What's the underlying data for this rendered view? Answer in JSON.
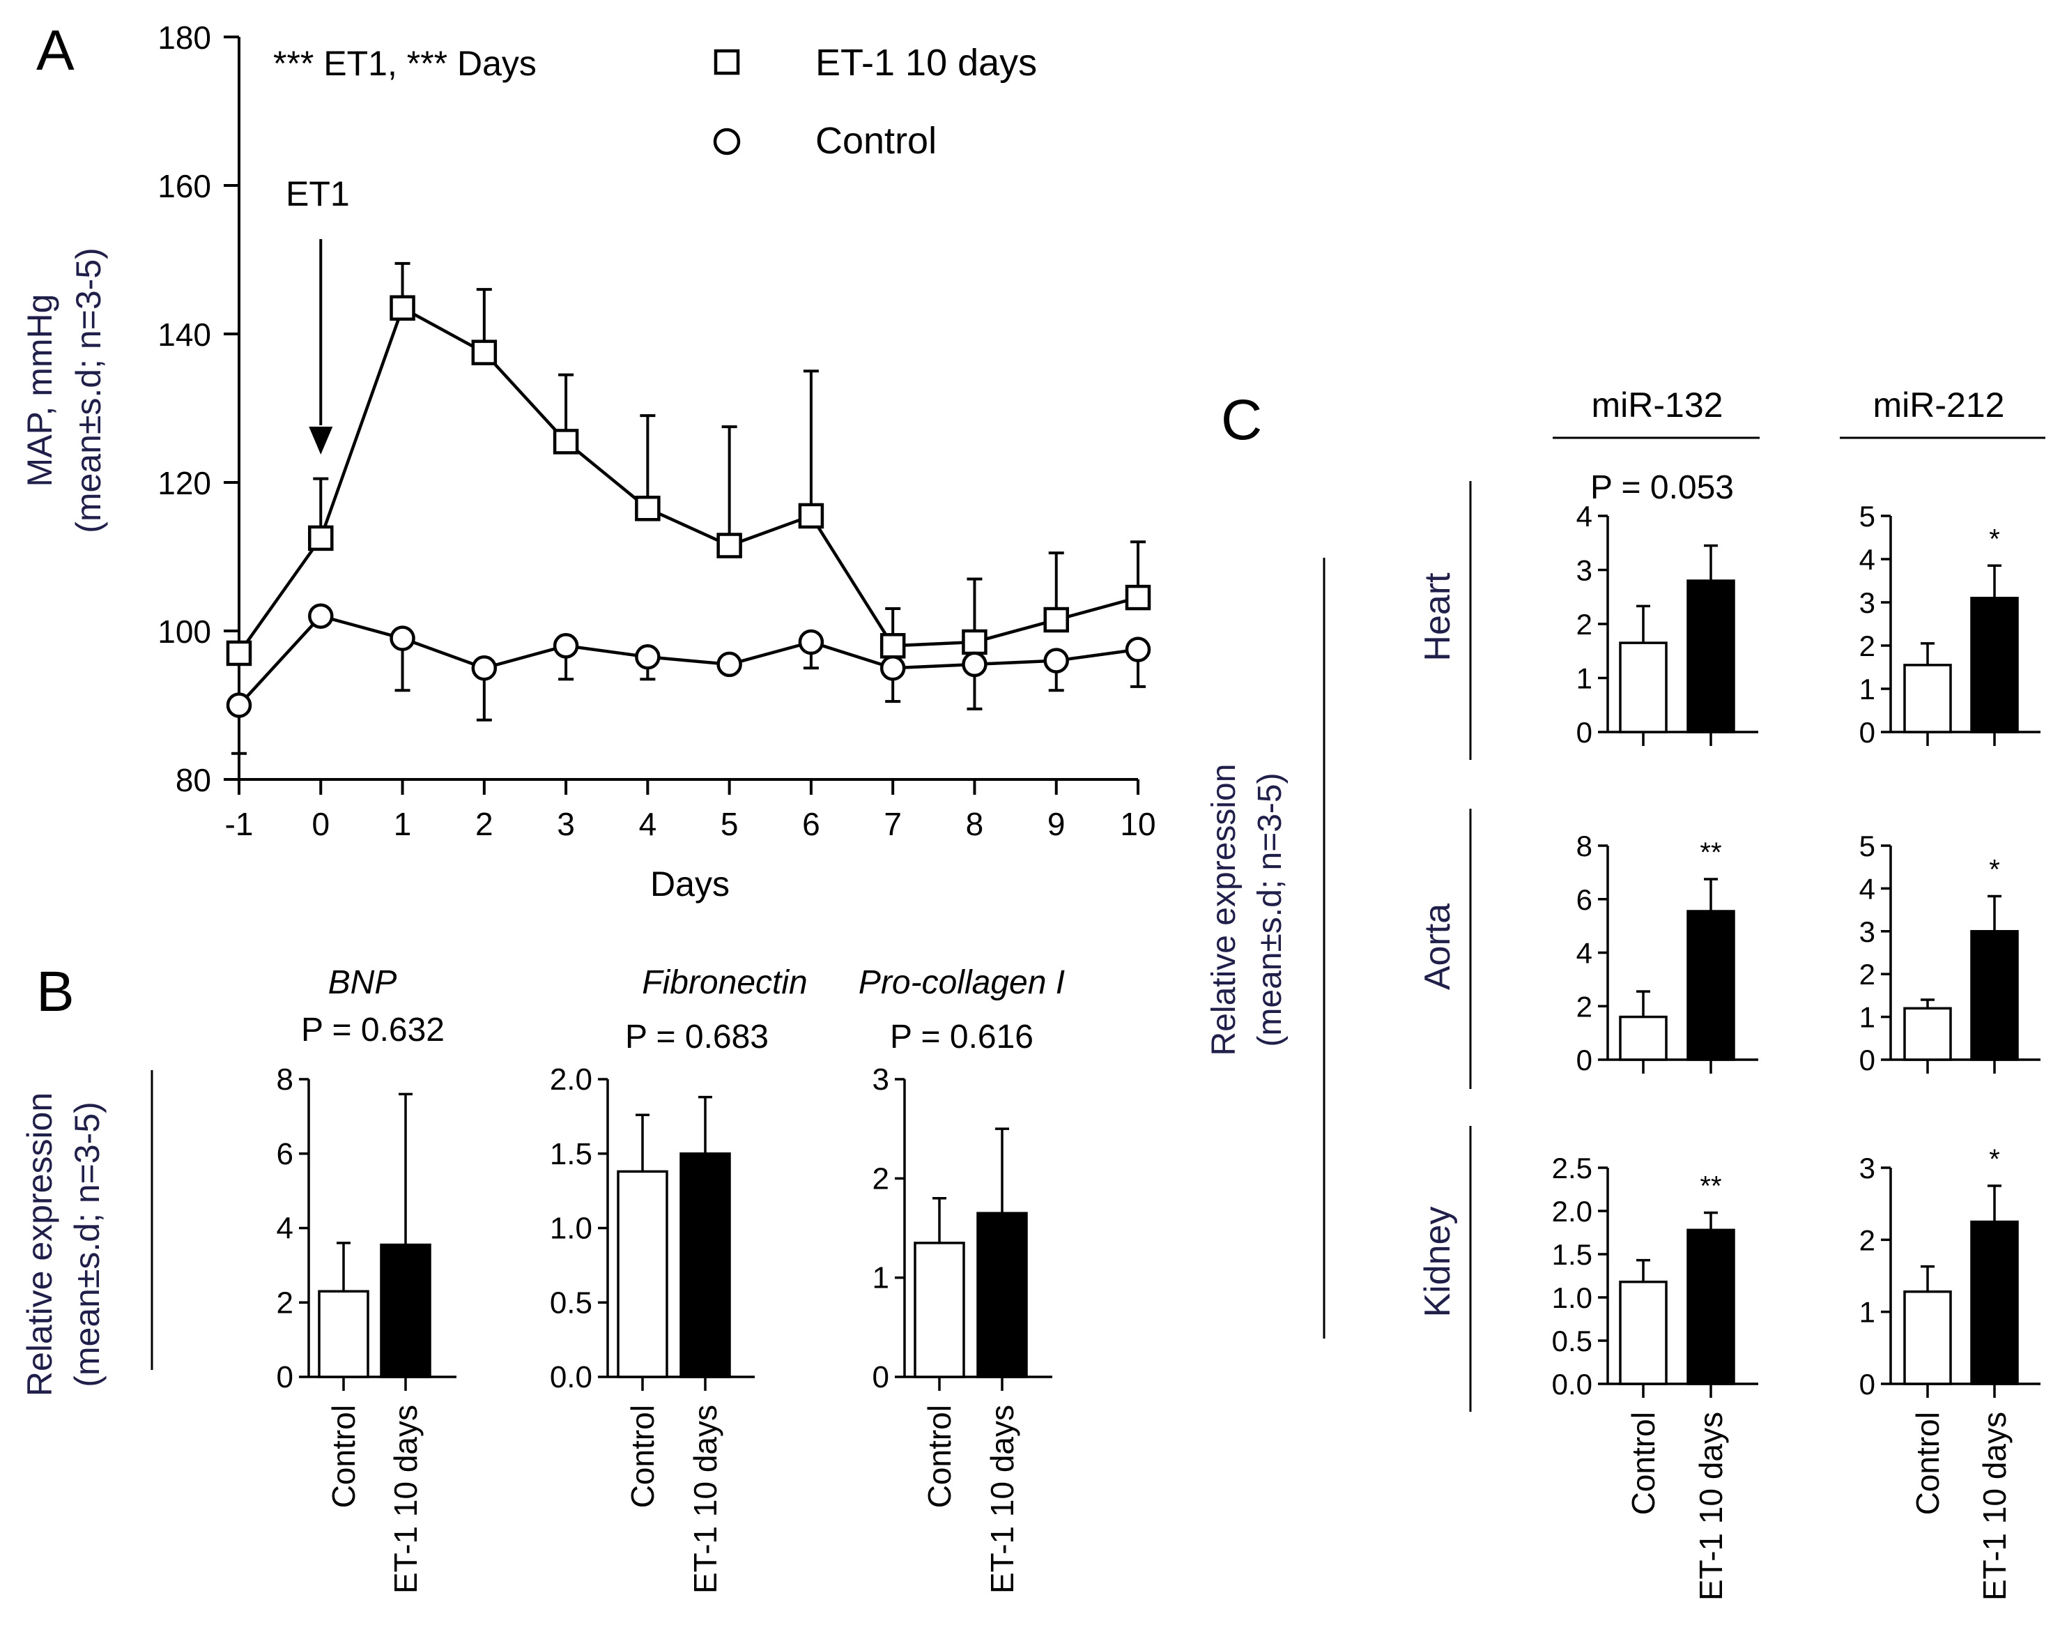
{
  "colors": {
    "ink": "#000000",
    "axis_label": "#1f1f4a",
    "control_fill": "#ffffff",
    "et1_fill": "#000000"
  },
  "chart_data": [
    {
      "id": "A",
      "type": "line",
      "panel_label": "A",
      "title": "",
      "xlabel": "Days",
      "ylabel_line1": "MAP, mmHg",
      "ylabel_line2": "(mean±s.d; n=3-5)",
      "xlim": [
        -1,
        10
      ],
      "ylim": [
        80,
        180
      ],
      "x": [
        -1,
        0,
        1,
        2,
        3,
        4,
        5,
        6,
        7,
        8,
        9,
        10
      ],
      "x_ticks": [
        "-1",
        "0",
        "1",
        "2",
        "3",
        "4",
        "5",
        "6",
        "7",
        "8",
        "9",
        "10"
      ],
      "y_ticks": [
        "80",
        "100",
        "120",
        "140",
        "160",
        "180"
      ],
      "stats_annotation": "*** ET1, *** Days",
      "arrow_label": "ET1",
      "arrow_x": 0,
      "legend": [
        {
          "name": "ET-1 10 days",
          "marker": "square"
        },
        {
          "name": "Control",
          "marker": "circle"
        }
      ],
      "series": [
        {
          "name": "ET-1 10 days",
          "marker": "square",
          "values": [
            97,
            112.5,
            143.5,
            137.5,
            125.5,
            116.5,
            111.5,
            115.5,
            98,
            98.5,
            101.5,
            104.5
          ],
          "errors": [
            0,
            8,
            6,
            8.5,
            9,
            12.5,
            16,
            19.5,
            5,
            8.5,
            9,
            7.5
          ]
        },
        {
          "name": "Control",
          "marker": "circle",
          "values": [
            90,
            102,
            99,
            95,
            98,
            96.5,
            95.5,
            98.5,
            95,
            95.5,
            96,
            97.5
          ],
          "errors": [
            6.5,
            0,
            7,
            7,
            4.5,
            3,
            0,
            3.5,
            4.5,
            6,
            4,
            5
          ]
        }
      ]
    },
    {
      "id": "B-BNP",
      "type": "bar",
      "panel_label": "B",
      "title": "BNP",
      "italic": true,
      "p_value": "P = 0.632",
      "categories": [
        "Control",
        "ET-1 10 days"
      ],
      "values": [
        2.3,
        3.55
      ],
      "errors": [
        1.3,
        4.05
      ],
      "ylim": [
        0,
        8
      ],
      "y_ticks": [
        "0",
        "2",
        "4",
        "6",
        "8"
      ],
      "significance": [
        "",
        ""
      ]
    },
    {
      "id": "B-Fibronectin",
      "type": "bar",
      "title": "Fibronectin",
      "italic": true,
      "p_value": "P = 0.683",
      "categories": [
        "Control",
        "ET-1 10 days"
      ],
      "values": [
        1.38,
        1.5
      ],
      "errors": [
        0.38,
        0.38
      ],
      "ylim": [
        0,
        2
      ],
      "y_ticks": [
        "0.0",
        "0.5",
        "1.0",
        "1.5",
        "2.0"
      ],
      "significance": [
        "",
        ""
      ]
    },
    {
      "id": "B-Procollagen",
      "type": "bar",
      "title": "Pro-collagen I",
      "italic": true,
      "p_value": "P = 0.616",
      "categories": [
        "Control",
        "ET-1 10 days"
      ],
      "values": [
        1.35,
        1.65
      ],
      "errors": [
        0.45,
        0.85
      ],
      "ylim": [
        0,
        3
      ],
      "y_ticks": [
        "0",
        "1",
        "2",
        "3"
      ],
      "significance": [
        "",
        ""
      ]
    },
    {
      "id": "C-Heart-132",
      "type": "bar",
      "panel_label": "C",
      "column": "miR-132",
      "row": "Heart",
      "p_value": "P = 0.053",
      "categories": [
        "Control",
        "ET-1 10 days"
      ],
      "values": [
        1.65,
        2.8
      ],
      "errors": [
        0.68,
        0.65
      ],
      "ylim": [
        0,
        4
      ],
      "y_ticks": [
        "0",
        "1",
        "2",
        "3",
        "4"
      ],
      "significance": [
        "",
        ""
      ]
    },
    {
      "id": "C-Heart-212",
      "type": "bar",
      "column": "miR-212",
      "row": "Heart",
      "categories": [
        "Control",
        "ET-1 10 days"
      ],
      "values": [
        1.55,
        3.1
      ],
      "errors": [
        0.5,
        0.75
      ],
      "ylim": [
        0,
        5
      ],
      "y_ticks": [
        "0",
        "1",
        "2",
        "3",
        "4",
        "5"
      ],
      "significance": [
        "",
        "*"
      ]
    },
    {
      "id": "C-Aorta-132",
      "type": "bar",
      "column": "miR-132",
      "row": "Aorta",
      "categories": [
        "Control",
        "ET-1 10 days"
      ],
      "values": [
        1.6,
        5.55
      ],
      "errors": [
        0.95,
        1.2
      ],
      "ylim": [
        0,
        8
      ],
      "y_ticks": [
        "0",
        "2",
        "4",
        "6",
        "8"
      ],
      "significance": [
        "",
        "**"
      ]
    },
    {
      "id": "C-Aorta-212",
      "type": "bar",
      "column": "miR-212",
      "row": "Aorta",
      "categories": [
        "Control",
        "ET-1 10 days"
      ],
      "values": [
        1.2,
        3.0
      ],
      "errors": [
        0.2,
        0.82
      ],
      "ylim": [
        0,
        5
      ],
      "y_ticks": [
        "0",
        "1",
        "2",
        "3",
        "4",
        "5"
      ],
      "significance": [
        "",
        "*"
      ]
    },
    {
      "id": "C-Kidney-132",
      "type": "bar",
      "column": "miR-132",
      "row": "Kidney",
      "categories": [
        "Control",
        "ET-1 10 days"
      ],
      "values": [
        1.18,
        1.78
      ],
      "errors": [
        0.25,
        0.2
      ],
      "ylim": [
        0,
        2.5
      ],
      "y_ticks": [
        "0.0",
        "0.5",
        "1.0",
        "1.5",
        "2.0",
        "2.5"
      ],
      "significance": [
        "",
        "**"
      ]
    },
    {
      "id": "C-Kidney-212",
      "type": "bar",
      "column": "miR-212",
      "row": "Kidney",
      "categories": [
        "Control",
        "ET-1 10 days"
      ],
      "values": [
        1.28,
        2.25
      ],
      "errors": [
        0.35,
        0.5
      ],
      "ylim": [
        0,
        3
      ],
      "y_ticks": [
        "0",
        "1",
        "2",
        "3"
      ],
      "significance": [
        "",
        "*"
      ]
    }
  ],
  "panel_b": {
    "ylabel_line1": "Relative expression",
    "ylabel_line2": "(mean±s.d; n=3-5)"
  },
  "panel_c": {
    "ylabel_line1": "Relative expression",
    "ylabel_line2": "(mean±s.d; n=3-5)",
    "columns": [
      "miR-132",
      "miR-212"
    ],
    "rows": [
      "Heart",
      "Aorta",
      "Kidney"
    ]
  }
}
